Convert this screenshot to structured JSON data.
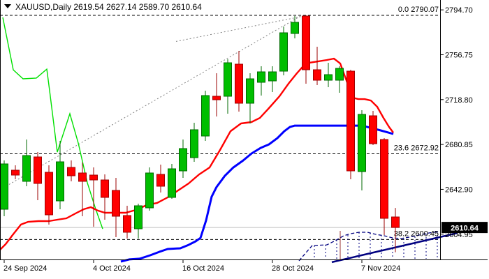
{
  "header": {
    "title": "XAUUSD,Daily  2619.54 2627.14 2589.70 2610.64"
  },
  "colors": {
    "bull_fill": "#00BE00",
    "bull_edge": "#006A00",
    "bull_wick": "#006A00",
    "bear_fill": "#FF0000",
    "bear_edge": "#A00000",
    "bear_wick": "#9B0000",
    "ma_fast": "#FF0000",
    "ma_slow": "#0000FF",
    "zigzag": "#00E000",
    "fib_line": "#000000",
    "trend_dotted": "#808080",
    "pattern_navy": "#000080",
    "price_line": "#C0C0C0",
    "badge_bg": "#000000",
    "badge_text": "#FFFFFF",
    "frame": "#000000",
    "artifact": "#993333"
  },
  "y_axis": {
    "labels": [
      {
        "text": "2794.70",
        "price": 2794.7
      },
      {
        "text": "2756.75",
        "price": 2756.75
      },
      {
        "text": "2718.80",
        "price": 2718.8
      },
      {
        "text": "2680.85",
        "price": 2680.85
      },
      {
        "text": "2642.90",
        "price": 2642.9
      },
      {
        "text": "2604.95",
        "price": 2604.95
      }
    ],
    "badge": {
      "text": "2610.64",
      "price": 2610.64
    }
  },
  "x_axis": {
    "labels": [
      {
        "text": "24 Sep 2024",
        "index": 0
      },
      {
        "text": "4 Oct 2024",
        "index": 8
      },
      {
        "text": "16 Oct 2024",
        "index": 16
      },
      {
        "text": "28 Oct 2024",
        "index": 24
      },
      {
        "text": "7 Nov 2024",
        "index": 32
      }
    ]
  },
  "fib_levels": [
    {
      "label": "0.0 2790.07",
      "price": 2790.07
    },
    {
      "label": "23.6 2672.92",
      "price": 2672.92
    },
    {
      "label": "38.2 2600.45",
      "price": 2600.45
    }
  ],
  "chart_data": {
    "type": "candlestick",
    "symbol": "XAUUSD",
    "timeframe": "Daily",
    "title": "XAUUSD,Daily",
    "last_ohlc": {
      "open": 2619.54,
      "high": 2627.14,
      "low": 2589.7,
      "close": 2610.64
    },
    "current_price": 2610.64,
    "ylim": [
      2581,
      2800
    ],
    "grid": false,
    "candles": [
      {
        "date": "24 Sep 2024",
        "o": 2626.05,
        "h": 2667.35,
        "l": 2620.15,
        "c": 2664.4
      },
      {
        "date": "25 Sep 2024",
        "o": 2659.09,
        "h": 2663.22,
        "l": 2651.42,
        "c": 2654.96
      },
      {
        "date": "26 Sep 2024",
        "o": 2649.65,
        "h": 2685.05,
        "l": 2645.52,
        "c": 2671.48
      },
      {
        "date": "27 Sep 2024",
        "o": 2670.3,
        "h": 2674.43,
        "l": 2633.72,
        "c": 2647.88
      },
      {
        "date": "30 Sep 2024",
        "o": 2657.32,
        "h": 2663.22,
        "l": 2613.07,
        "c": 2621.33
      },
      {
        "date": "1 Oct 2024",
        "o": 2633.13,
        "h": 2683.87,
        "l": 2626.05,
        "c": 2666.17
      },
      {
        "date": "2 Oct 2024",
        "o": 2661.45,
        "h": 2667.35,
        "l": 2649.65,
        "c": 2654.37
      },
      {
        "date": "3 Oct 2024",
        "o": 2656.73,
        "h": 2665.58,
        "l": 2620.15,
        "c": 2649.65
      },
      {
        "date": "4 Oct 2024",
        "o": 2654.96,
        "h": 2661.45,
        "l": 2611.3,
        "c": 2650.83
      },
      {
        "date": "7 Oct 2024",
        "o": 2650.83,
        "h": 2655.55,
        "l": 2617.2,
        "c": 2636.08
      },
      {
        "date": "8 Oct 2024",
        "o": 2641.98,
        "h": 2652.6,
        "l": 2602.45,
        "c": 2620.15
      },
      {
        "date": "9 Oct 2024",
        "o": 2620.74,
        "h": 2629.0,
        "l": 2601.27,
        "c": 2606.58
      },
      {
        "date": "10 Oct 2024",
        "o": 2609.53,
        "h": 2630.77,
        "l": 2601.27,
        "c": 2629.0
      },
      {
        "date": "11 Oct 2024",
        "o": 2627.23,
        "h": 2661.45,
        "l": 2624.87,
        "c": 2656.73
      },
      {
        "date": "14 Oct 2024",
        "o": 2655.55,
        "h": 2663.81,
        "l": 2640.21,
        "c": 2645.52
      },
      {
        "date": "15 Oct 2024",
        "o": 2636.08,
        "h": 2664.4,
        "l": 2634.9,
        "c": 2660.27
      },
      {
        "date": "16 Oct 2024",
        "o": 2658.5,
        "h": 2685.05,
        "l": 2652.6,
        "c": 2677.38
      },
      {
        "date": "17 Oct 2024",
        "o": 2669.71,
        "h": 2699.21,
        "l": 2666.17,
        "c": 2693.31
      },
      {
        "date": "18 Oct 2024",
        "o": 2688.0,
        "h": 2726.35,
        "l": 2683.87,
        "c": 2722.22
      },
      {
        "date": "21 Oct 2024",
        "o": 2721.63,
        "h": 2741.1,
        "l": 2704.52,
        "c": 2718.68
      },
      {
        "date": "22 Oct 2024",
        "o": 2721.63,
        "h": 2752.9,
        "l": 2706.88,
        "c": 2749.95
      },
      {
        "date": "23 Oct 2024",
        "o": 2748.77,
        "h": 2759.98,
        "l": 2708.65,
        "c": 2715.73
      },
      {
        "date": "24 Oct 2024",
        "o": 2715.73,
        "h": 2741.1,
        "l": 2698.62,
        "c": 2736.38
      },
      {
        "date": "25 Oct 2024",
        "o": 2733.43,
        "h": 2747.0,
        "l": 2722.22,
        "c": 2742.28
      },
      {
        "date": "28 Oct 2024",
        "o": 2734.61,
        "h": 2747.0,
        "l": 2725.17,
        "c": 2742.28
      },
      {
        "date": "29 Oct 2024",
        "o": 2742.87,
        "h": 2780.63,
        "l": 2739.33,
        "c": 2775.32
      },
      {
        "date": "30 Oct 2024",
        "o": 2774.73,
        "h": 2789.48,
        "l": 2770.6,
        "c": 2784.17
      },
      {
        "date": "31 Oct 2024",
        "o": 2789.48,
        "h": 2790.07,
        "l": 2732.25,
        "c": 2744.05
      },
      {
        "date": "1 Nov 2024",
        "o": 2744.05,
        "h": 2763.52,
        "l": 2731.07,
        "c": 2735.2
      },
      {
        "date": "4 Nov 2024",
        "o": 2735.2,
        "h": 2749.95,
        "l": 2729.3,
        "c": 2739.92
      },
      {
        "date": "5 Nov 2024",
        "o": 2735.2,
        "h": 2747.0,
        "l": 2724.58,
        "c": 2745.23
      },
      {
        "date": "6 Nov 2024",
        "o": 2742.87,
        "h": 2744.05,
        "l": 2651.42,
        "c": 2658.5
      },
      {
        "date": "7 Nov 2024",
        "o": 2657.91,
        "h": 2709.83,
        "l": 2641.98,
        "c": 2706.29
      },
      {
        "date": "8 Nov 2024",
        "o": 2705.11,
        "h": 2709.24,
        "l": 2680.33,
        "c": 2681.51
      },
      {
        "date": "11 Nov 2024",
        "o": 2685.05,
        "h": 2686.23,
        "l": 2604.22,
        "c": 2618.38
      },
      {
        "date": "12 Nov 2024",
        "o": 2619.54,
        "h": 2627.14,
        "l": 2589.7,
        "c": 2610.64
      }
    ],
    "overlays": {
      "ma_fast_red": [
        [
          0,
          2591.8
        ],
        [
          8,
          2596.5
        ],
        [
          18,
          2604.2
        ],
        [
          30,
          2613.1
        ],
        [
          40,
          2615.4
        ],
        [
          55,
          2616.0
        ],
        [
          70,
          2616.0
        ],
        [
          82,
          2617.2
        ],
        [
          95,
          2618.4
        ],
        [
          110,
          2623.1
        ],
        [
          120,
          2626.1
        ],
        [
          130,
          2627.8
        ],
        [
          140,
          2624.9
        ],
        [
          150,
          2623.1
        ],
        [
          165,
          2623.1
        ],
        [
          180,
          2623.1
        ],
        [
          195,
          2625.5
        ],
        [
          210,
          2629.6
        ],
        [
          225,
          2631.4
        ],
        [
          240,
          2636.1
        ],
        [
          255,
          2642.0
        ],
        [
          270,
          2647.9
        ],
        [
          285,
          2655.5
        ],
        [
          300,
          2661.4
        ],
        [
          315,
          2676.2
        ],
        [
          330,
          2692.1
        ],
        [
          345,
          2698.6
        ],
        [
          360,
          2699.8
        ],
        [
          372,
          2703.3
        ],
        [
          385,
          2711.6
        ],
        [
          400,
          2721.6
        ],
        [
          413,
          2732.3
        ],
        [
          425,
          2741.1
        ],
        [
          433,
          2746.4
        ],
        [
          442,
          2749.9
        ],
        [
          455,
          2751.1
        ],
        [
          468,
          2752.3
        ],
        [
          478,
          2753.5
        ],
        [
          487,
          2749.4
        ],
        [
          494,
          2738.1
        ],
        [
          500,
          2728.7
        ],
        [
          505,
          2720.4
        ],
        [
          513,
          2719.2
        ],
        [
          522,
          2719.2
        ],
        [
          531,
          2718.0
        ],
        [
          540,
          2712.7
        ],
        [
          549,
          2703.3
        ],
        [
          557,
          2695.6
        ],
        [
          563,
          2690.9
        ]
      ],
      "ma_slow_blue": [
        [
          173,
          2581.8
        ],
        [
          185,
          2583.6
        ],
        [
          200,
          2584.2
        ],
        [
          215,
          2587.1
        ],
        [
          228,
          2590.0
        ],
        [
          240,
          2592.4
        ],
        [
          258,
          2593.0
        ],
        [
          270,
          2595.9
        ],
        [
          280,
          2598.9
        ],
        [
          287,
          2601.8
        ],
        [
          295,
          2616.6
        ],
        [
          303,
          2636.7
        ],
        [
          310,
          2644.9
        ],
        [
          322,
          2654.4
        ],
        [
          334,
          2661.4
        ],
        [
          348,
          2667.3
        ],
        [
          360,
          2673.2
        ],
        [
          373,
          2677.9
        ],
        [
          385,
          2680.9
        ],
        [
          397,
          2686.2
        ],
        [
          407,
          2692.1
        ],
        [
          415,
          2695.6
        ],
        [
          422,
          2696.8
        ],
        [
          518,
          2696.8
        ],
        [
          530,
          2695.0
        ],
        [
          545,
          2692.7
        ],
        [
          556,
          2690.9
        ],
        [
          563,
          2689.7
        ]
      ],
      "green_indicator": [
        [
          4,
          2788.3
        ],
        [
          19,
          2744.0
        ],
        [
          33,
          2736.4
        ],
        [
          52,
          2737.0
        ],
        [
          67,
          2744.6
        ],
        [
          71,
          2726.4
        ],
        [
          82,
          2674.4
        ],
        [
          100,
          2706.9
        ],
        [
          112,
          2682.1
        ],
        [
          125,
          2648.5
        ],
        [
          137,
          2626.1
        ],
        [
          147,
          2609.5
        ]
      ],
      "dotted_trendline": [
        [
          0,
          2642.57
        ],
        [
          432,
          2790.07
        ]
      ],
      "dotted_trendline_upper": [
        [
          252,
          2768.0
        ],
        [
          430,
          2788.9
        ]
      ],
      "navy_dashed_curve": [
        [
          428,
          2582.43
        ],
        [
          440,
          2590.69
        ],
        [
          447,
          2595.37
        ],
        [
          468,
          2595.96
        ],
        [
          480,
          2599.5
        ],
        [
          492,
          2603.63
        ],
        [
          502,
          2605.4
        ],
        [
          514,
          2606.58
        ],
        [
          526,
          2606.58
        ],
        [
          538,
          2604.81
        ],
        [
          550,
          2603.63
        ],
        [
          562,
          2601.86
        ],
        [
          574,
          2601.27
        ],
        [
          586,
          2602.45
        ],
        [
          600,
          2604.22
        ],
        [
          614,
          2605.99
        ],
        [
          628,
          2607.17
        ]
      ],
      "navy_hatches": [
        [
          450,
          2595.37
        ],
        [
          466,
          2595.96
        ],
        [
          482,
          2600.09
        ],
        [
          498,
          2604.22
        ],
        [
          514,
          2606.58
        ],
        [
          530,
          2605.99
        ],
        [
          546,
          2604.22
        ],
        [
          562,
          2601.86
        ],
        [
          578,
          2601.27
        ],
        [
          594,
          2603.04
        ],
        [
          610,
          2605.4
        ],
        [
          626,
          2607.17
        ]
      ],
      "navy_solid_line": [
        [
          475,
          2581.25
        ],
        [
          655,
          2606.0
        ]
      ],
      "artifact_line": {
        "x": 487,
        "price_top": 2607.76,
        "price_bottom": 2583.6
      }
    }
  }
}
